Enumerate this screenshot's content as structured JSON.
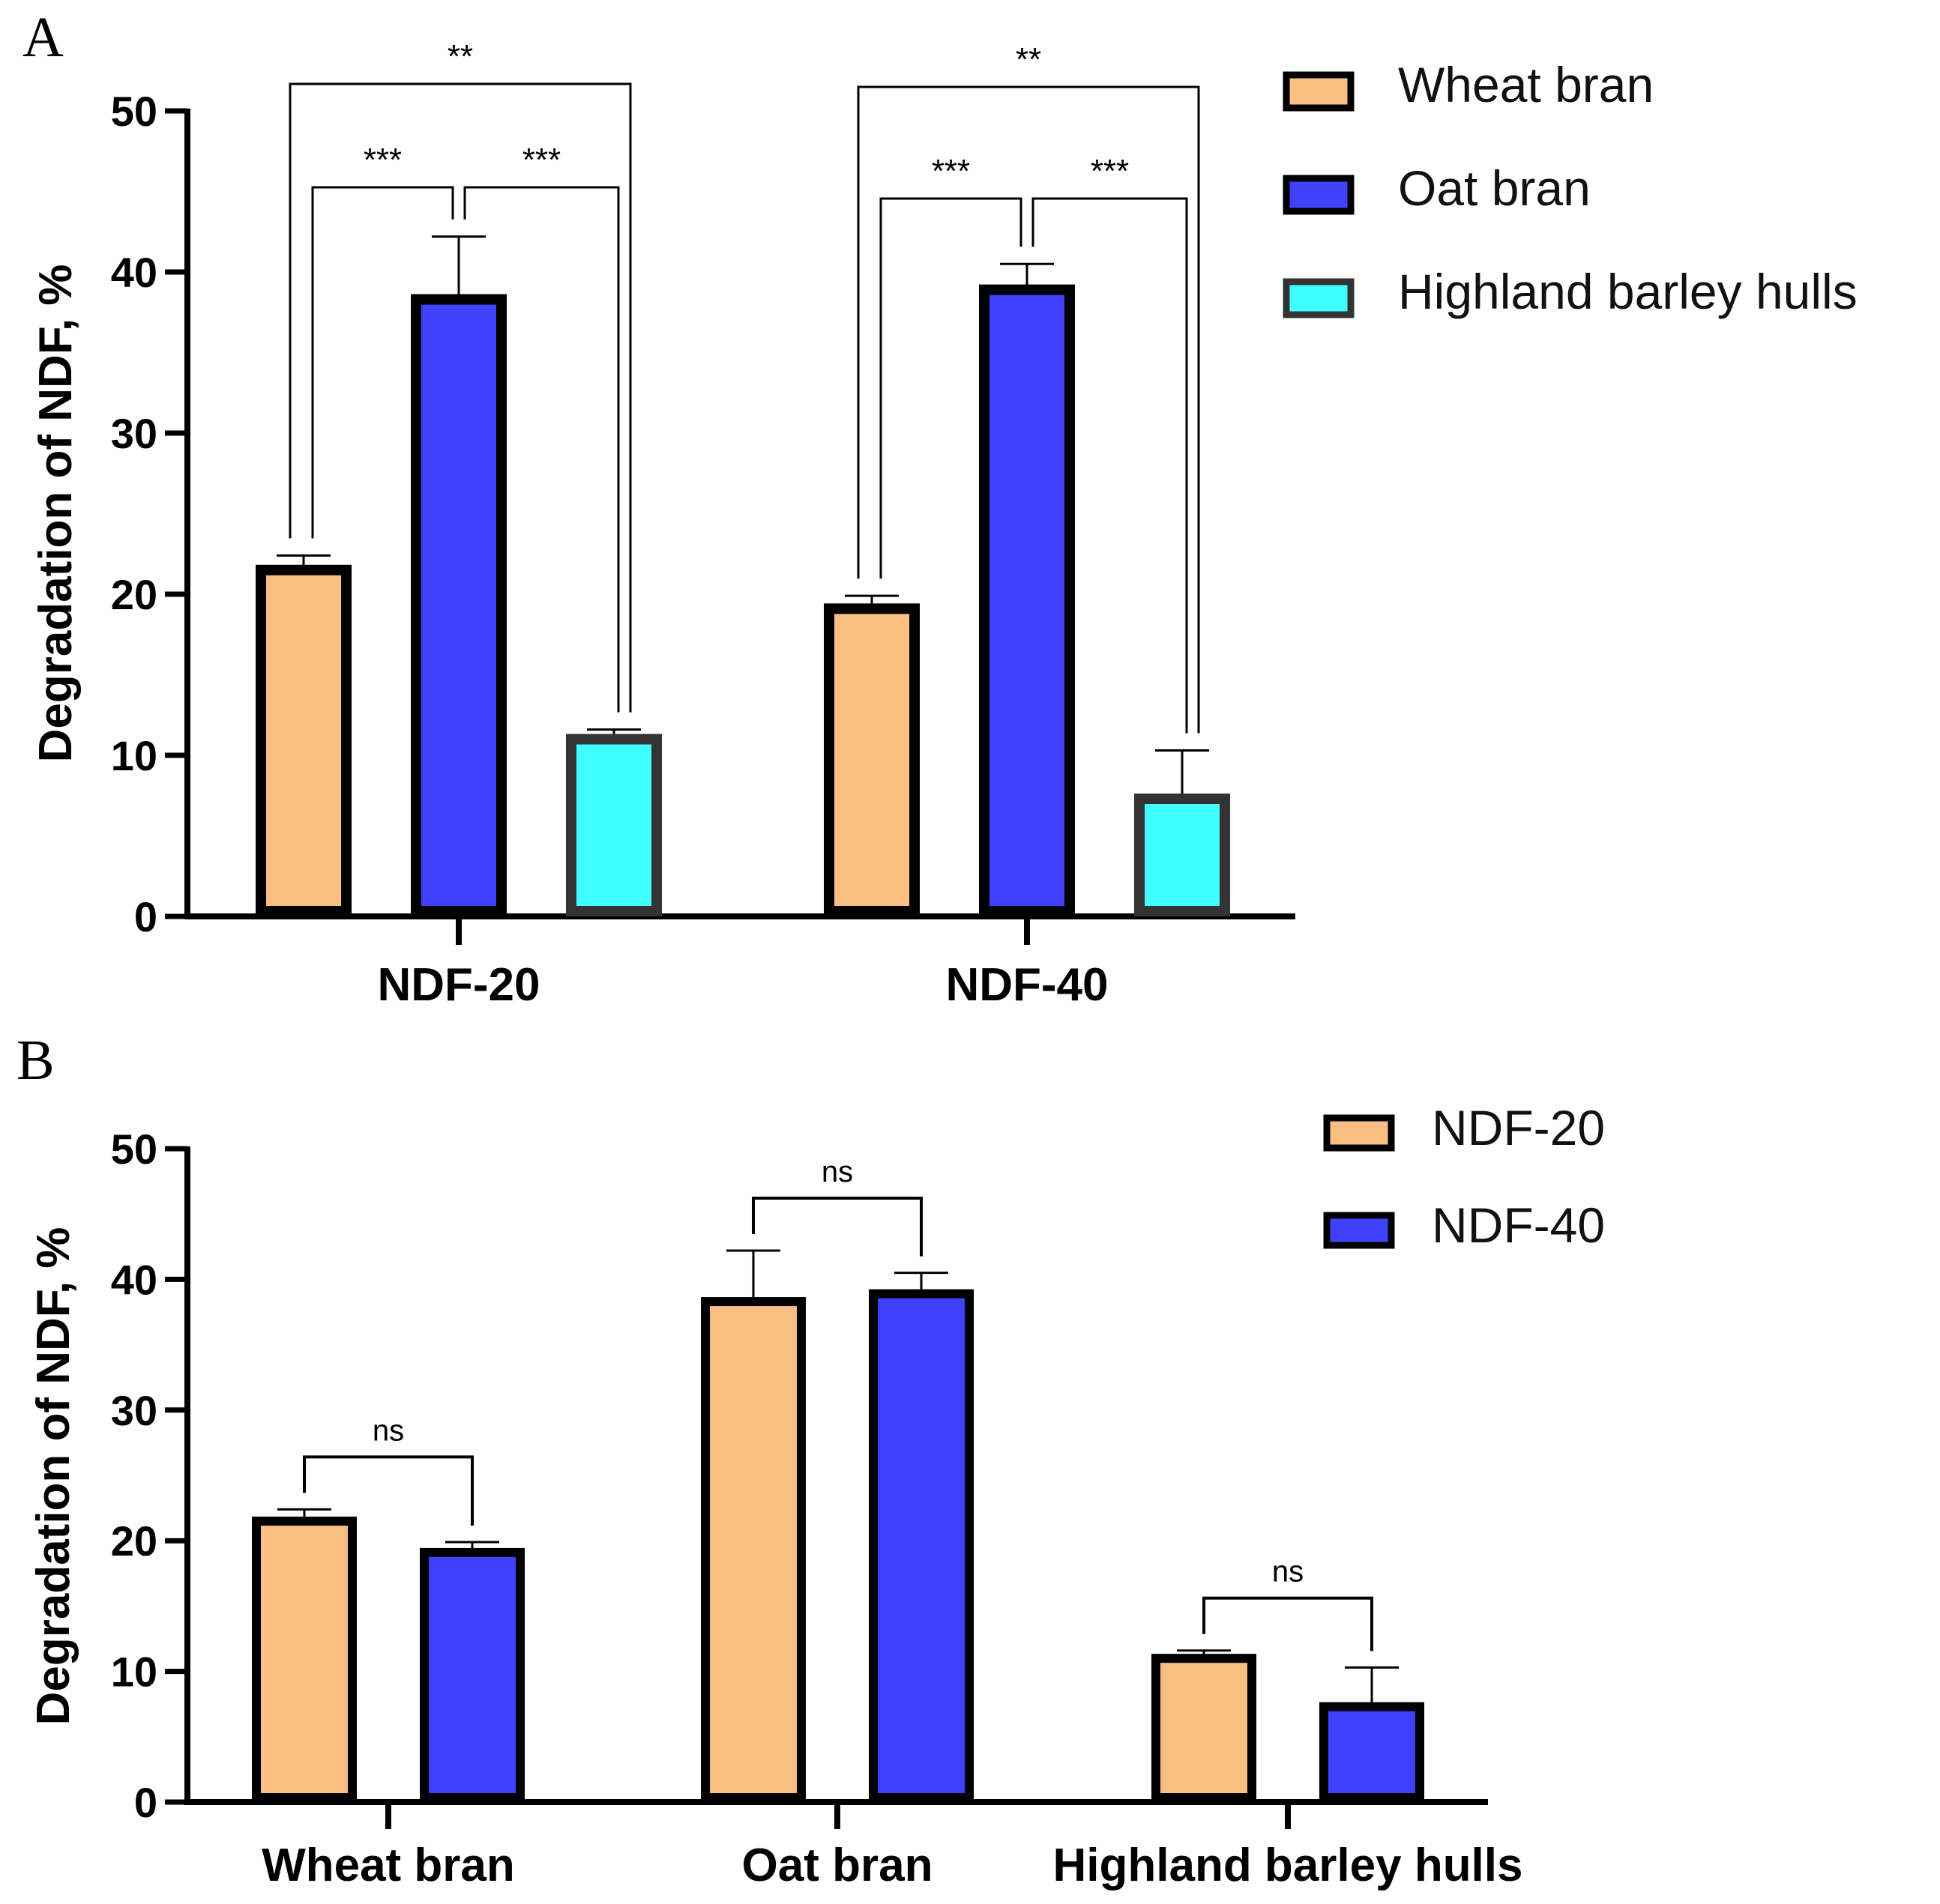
{
  "chart_data": [
    {
      "panel": "A",
      "type": "bar",
      "categories": [
        "NDF-20",
        "NDF-40"
      ],
      "series": [
        {
          "name": "Wheat bran",
          "color": "#F9BE82",
          "values": [
            21.5,
            19.1
          ],
          "errors": [
            0.9,
            0.8
          ]
        },
        {
          "name": "Oat bran",
          "color": "#4040FF",
          "values": [
            38.3,
            38.9
          ],
          "errors": [
            3.9,
            1.6
          ]
        },
        {
          "name": "Highland barley hulls",
          "color": "#40FFFF",
          "values": [
            11.0,
            7.3
          ],
          "errors": [
            0.6,
            3.0
          ]
        }
      ],
      "ylabel": "Degradation of NDF, %",
      "xlabel": "",
      "ylim": [
        0,
        50
      ],
      "yticks": [
        "0",
        "10",
        "20",
        "30",
        "40",
        "50"
      ],
      "significance": [
        {
          "group": 0,
          "from": 0,
          "to": 1,
          "label": "***"
        },
        {
          "group": 0,
          "from": 1,
          "to": 2,
          "label": "***"
        },
        {
          "group": 0,
          "from": 0,
          "to": 2,
          "label": "**"
        },
        {
          "group": 1,
          "from": 0,
          "to": 1,
          "label": "***"
        },
        {
          "group": 1,
          "from": 1,
          "to": 2,
          "label": "***"
        },
        {
          "group": 1,
          "from": 0,
          "to": 2,
          "label": "**"
        }
      ],
      "legend": "top-right"
    },
    {
      "panel": "B",
      "type": "bar",
      "categories": [
        "Wheat bran",
        "Oat bran",
        "Highland barley hulls"
      ],
      "series": [
        {
          "name": "NDF-20",
          "color": "#F9BE82",
          "values": [
            21.5,
            38.3,
            11.0
          ],
          "errors": [
            0.9,
            3.9,
            0.6
          ]
        },
        {
          "name": "NDF-40",
          "color": "#4040FF",
          "values": [
            19.1,
            38.9,
            7.3
          ],
          "errors": [
            0.8,
            1.6,
            3.0
          ]
        }
      ],
      "ylabel": "Degradation of NDF, %",
      "xlabel": "",
      "ylim": [
        0,
        50
      ],
      "yticks": [
        "0",
        "10",
        "20",
        "30",
        "40",
        "50"
      ],
      "significance": [
        {
          "group": 0,
          "from": 0,
          "to": 1,
          "label": "ns"
        },
        {
          "group": 1,
          "from": 0,
          "to": 1,
          "label": "ns"
        },
        {
          "group": 2,
          "from": 0,
          "to": 1,
          "label": "ns"
        }
      ],
      "legend": "top-right"
    }
  ]
}
